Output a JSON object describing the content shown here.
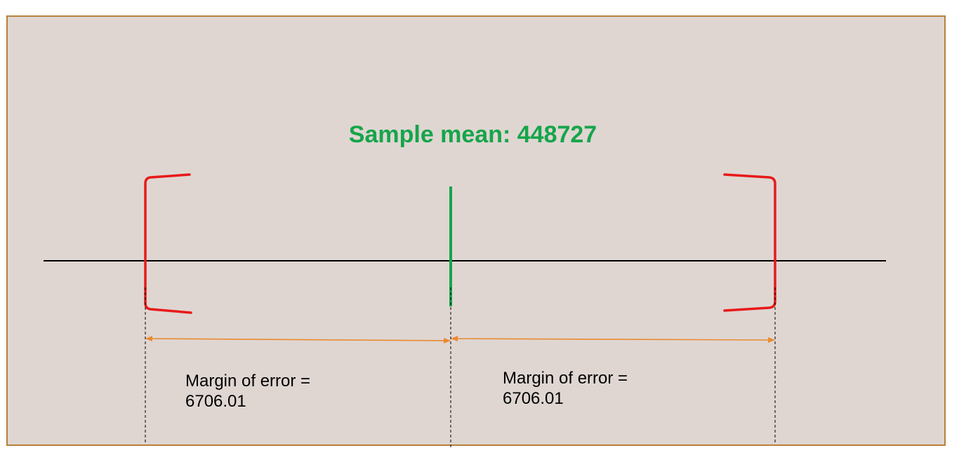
{
  "title": "Sample mean: 448727",
  "colors": {
    "background": "#dfd6d2",
    "border": "#b7813a",
    "title": "#16a54a",
    "bracket": "#e81a1a",
    "mean_marker": "#16a54a",
    "axis": "#000000",
    "arrow": "#ea8a2e",
    "guide": "#000000"
  },
  "margin_labels": {
    "left": {
      "line1": "Margin of error =",
      "line2": "6706.01"
    },
    "right": {
      "line1": "Margin of error =",
      "line2": "6706.01"
    }
  }
}
